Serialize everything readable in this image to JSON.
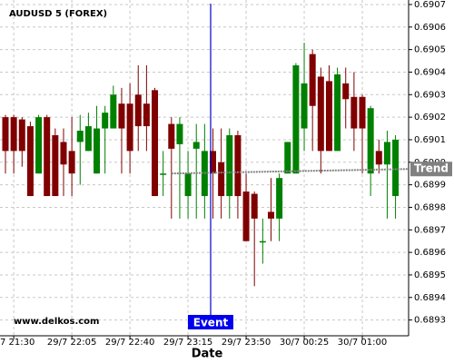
{
  "chart_data": {
    "type": "candlestick",
    "title": "AUDUSD 5 (FOREX)",
    "x_label": "Date",
    "watermark": "www.delkos.com",
    "event_label": "Event",
    "categories": [
      null,
      "7 21:30",
      null,
      null,
      null,
      null,
      null,
      null,
      "29/7 22:05",
      null,
      null,
      null,
      null,
      null,
      null,
      "29/7 22:40",
      null,
      null,
      null,
      null,
      null,
      null,
      "29/7 23:15",
      null,
      null,
      null,
      null,
      null,
      null,
      "29/7 23:50",
      null,
      null,
      null,
      null,
      null,
      null,
      "30/7 00:25",
      null,
      null,
      null,
      null,
      null,
      null,
      "30/7 01:00",
      null,
      null,
      null,
      null
    ],
    "up_color": "#008000",
    "down_color": "#800000",
    "open": [
      0.6902,
      0.6902,
      0.69019,
      0.69016,
      0.68995,
      0.6902,
      0.69012,
      0.69009,
      0.69005,
      0.69009,
      0.69005,
      0.68995,
      0.69015,
      0.69015,
      0.69026,
      0.69026,
      0.6903,
      0.69026,
      0.69032,
      0.68995,
      0.69017,
      0.69008,
      0.68985,
      0.69006,
      0.68985,
      0.69005,
      0.69,
      0.68985,
      0.69012,
      0.68987,
      0.68986,
      0.68965,
      0.68978,
      0.68975,
      0.68995,
      0.68995,
      0.69015,
      0.69048,
      0.69038,
      0.69036,
      0.69005,
      0.69035,
      0.69029,
      0.69029,
      0.68995,
      0.69005,
      0.68999,
      0.68985
    ],
    "high": [
      0.69021,
      0.69021,
      0.6902,
      0.69018,
      0.69021,
      0.69021,
      0.69015,
      0.69015,
      0.6902,
      0.69021,
      0.69022,
      0.69025,
      0.69025,
      0.69034,
      0.69033,
      0.69035,
      0.69043,
      0.69043,
      0.69033,
      0.69005,
      0.6902,
      0.6902,
      0.69005,
      0.69017,
      0.69017,
      0.69015,
      0.69015,
      0.69015,
      0.69014,
      0.68995,
      0.68987,
      0.68975,
      0.68993,
      0.68995,
      0.69009,
      0.69044,
      0.69053,
      0.6905,
      0.69042,
      0.69043,
      0.69042,
      0.69042,
      0.6904,
      0.6903,
      0.69025,
      0.6901,
      0.69014,
      0.69012
    ],
    "low": [
      0.68995,
      0.68995,
      0.68998,
      0.68985,
      0.68995,
      0.68985,
      0.68985,
      0.68985,
      0.68985,
      0.6899,
      0.69005,
      0.68995,
      0.68995,
      0.69015,
      0.68995,
      0.68995,
      0.69005,
      0.69005,
      0.68985,
      0.68985,
      0.68975,
      0.68975,
      0.68975,
      0.68975,
      0.68975,
      0.68975,
      0.68975,
      0.68975,
      0.68975,
      0.68965,
      0.68945,
      0.68955,
      0.68965,
      0.68965,
      0.68995,
      0.68995,
      0.69005,
      0.69005,
      0.68995,
      0.69005,
      0.69005,
      0.69015,
      0.69005,
      0.68995,
      0.68985,
      0.68995,
      0.68975,
      0.68975
    ],
    "close": [
      0.69005,
      0.69005,
      0.69005,
      0.68985,
      0.6902,
      0.68985,
      0.68985,
      0.68999,
      0.68995,
      0.69014,
      0.69016,
      0.69015,
      0.69022,
      0.6903,
      0.69015,
      0.69005,
      0.69016,
      0.69016,
      0.68985,
      0.68995,
      0.69006,
      0.69017,
      0.68995,
      0.69009,
      0.69005,
      0.68995,
      0.68985,
      0.69012,
      0.68985,
      0.68965,
      0.68975,
      0.68965,
      0.68975,
      0.68993,
      0.69009,
      0.69043,
      0.69035,
      0.69025,
      0.69005,
      0.69005,
      0.69039,
      0.69028,
      0.69015,
      0.69015,
      0.69024,
      0.68999,
      0.69009,
      0.6901
    ],
    "trend": {
      "name": "Trend",
      "color": "#808080",
      "values": [
        0.68995,
        0.68997
      ]
    },
    "ylim": [
      0.68923,
      0.69072
    ],
    "yticks": [
      0.6893,
      0.6894,
      0.6895,
      0.6896,
      0.6897,
      0.6898,
      0.6899,
      {
        "value": 0.69,
        "label": "0.6900"
      },
      0.6901,
      0.6902,
      0.6903,
      0.6904,
      0.6905,
      0.6906,
      0.6907
    ],
    "grid": true
  }
}
